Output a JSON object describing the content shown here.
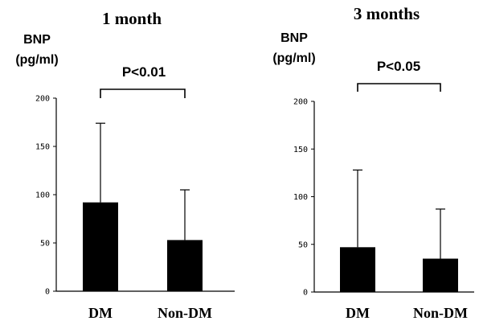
{
  "chart_data": [
    {
      "type": "bar",
      "title": "1 month",
      "ylabel_line1": "BNP",
      "ylabel_line2": "(pg/ml)",
      "categories": [
        "DM",
        "Non-DM"
      ],
      "values": [
        92,
        53
      ],
      "error_upper": [
        174,
        105
      ],
      "ylim": [
        0,
        200
      ],
      "yticks": [
        "0",
        "50",
        "100",
        "150",
        "200"
      ],
      "significance": "P<0.01",
      "grid": false,
      "bar_color": "#000000"
    },
    {
      "type": "bar",
      "title": "3 months",
      "ylabel_line1": "BNP",
      "ylabel_line2": "(pg/ml)",
      "categories": [
        "DM",
        "Non-DM"
      ],
      "values": [
        47,
        35
      ],
      "error_upper": [
        128,
        87
      ],
      "ylim": [
        0,
        200
      ],
      "yticks": [
        "0",
        "50",
        "100",
        "150",
        "200"
      ],
      "significance": "P<0.05",
      "grid": false,
      "bar_color": "#000000"
    }
  ]
}
